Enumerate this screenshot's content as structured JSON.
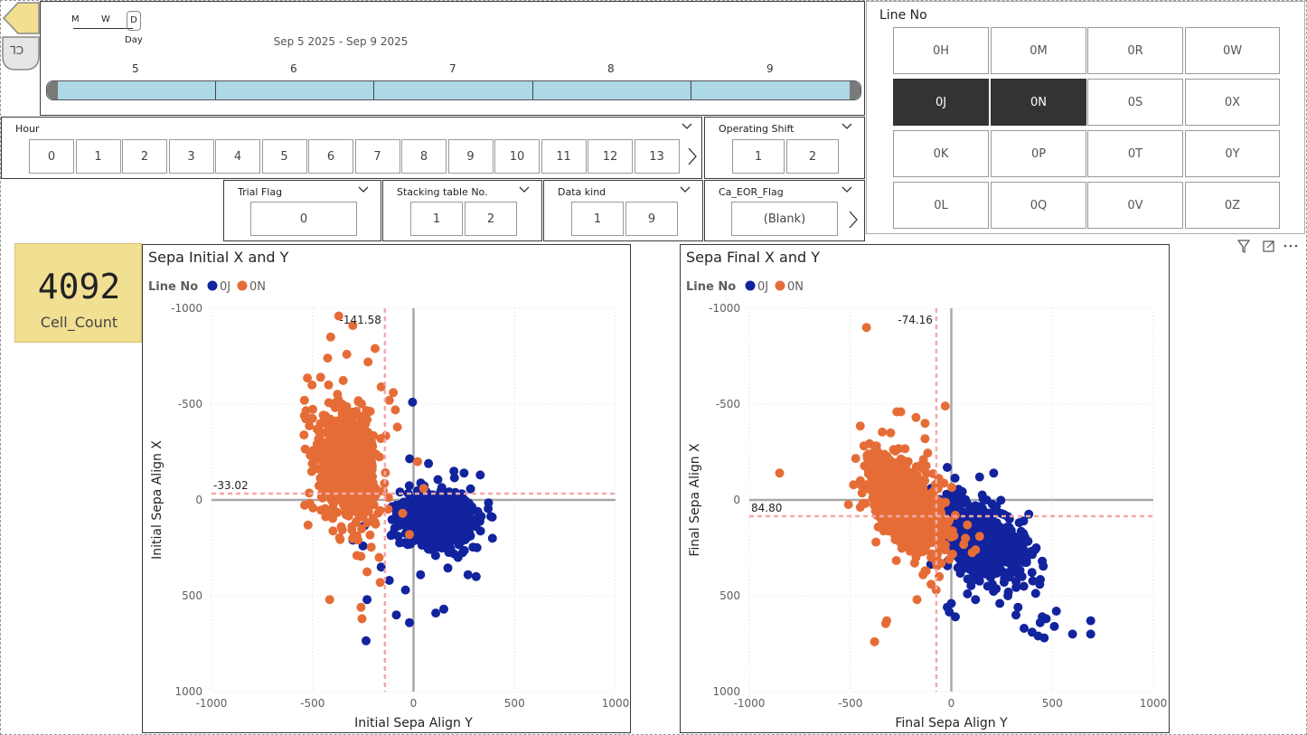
{
  "nav": {
    "clear_label": "CL"
  },
  "date_slicer": {
    "granularity": {
      "m": "M",
      "w": "W",
      "d": "D",
      "selected": "Day"
    },
    "range": "Sep 5 2025 - Sep 9 2025",
    "days": [
      "5",
      "6",
      "7",
      "8",
      "9"
    ]
  },
  "line_slicer": {
    "title": "Line No",
    "options": [
      "0H",
      "0M",
      "0R",
      "0W",
      "0J",
      "0N",
      "0S",
      "0X",
      "0K",
      "0P",
      "0T",
      "0Y",
      "0L",
      "0Q",
      "0V",
      "0Z"
    ],
    "selected": [
      "0J",
      "0N"
    ]
  },
  "hour_slicer": {
    "title": "Hour",
    "options": [
      "0",
      "1",
      "2",
      "3",
      "4",
      "5",
      "6",
      "7",
      "8",
      "9",
      "10",
      "11",
      "12",
      "13"
    ]
  },
  "shift_slicer": {
    "title": "Operating Shift",
    "options": [
      "1",
      "2"
    ]
  },
  "trial_slicer": {
    "title": "Trial Flag",
    "options": [
      "0"
    ]
  },
  "stack_slicer": {
    "title": "Stacking table No.",
    "options": [
      "1",
      "2"
    ]
  },
  "kind_slicer": {
    "title": "Data kind",
    "options": [
      "1",
      "9"
    ]
  },
  "eor_slicer": {
    "title": "Ca_EOR_Flag",
    "options": [
      "(Blank)"
    ]
  },
  "card": {
    "value": "4092",
    "label": "Cell_Count"
  },
  "colors": {
    "series_0J": "#12239e",
    "series_0N": "#e66c37",
    "selected_btn": "#333333",
    "card_bg": "#f1df92",
    "ref_line": "#f4a8a8"
  },
  "chart_data": [
    {
      "type": "scatter",
      "title": "Sepa Initial X and Y",
      "legend_title": "Line No",
      "legend": [
        "0J",
        "0N"
      ],
      "xlabel": "Initial Sepa Align Y",
      "ylabel": "Initial Sepa Align X",
      "xlim": [
        -1000,
        1000
      ],
      "ylim": [
        -1000,
        1000
      ],
      "y_inverted": true,
      "xticks": [
        "-1000",
        "-500",
        "0",
        "500",
        "1000"
      ],
      "yticks": [
        "-1000",
        "-500",
        "0",
        "500",
        "1000"
      ],
      "ref_x": -141.58,
      "ref_y": -33.02,
      "ref_x_label": "-141.58",
      "ref_y_label": "-33.02",
      "series": [
        {
          "name": "0J",
          "cx": 120,
          "cy": 100,
          "sx": 90,
          "sy": 75,
          "n": 650,
          "outliers": [
            [
              -5,
              -510
            ],
            [
              35,
              390
            ],
            [
              170,
              355
            ],
            [
              -85,
              600
            ],
            [
              -20,
              640
            ],
            [
              -235,
              735
            ],
            [
              110,
              590
            ],
            [
              150,
              570
            ],
            [
              -230,
              520
            ],
            [
              310,
              400
            ],
            [
              200,
              -150
            ],
            [
              250,
              -140
            ],
            [
              330,
              -130
            ],
            [
              -300,
              210
            ],
            [
              -250,
              240
            ],
            [
              270,
              390
            ],
            [
              -40,
              470
            ],
            [
              -160,
              350
            ],
            [
              220,
              300
            ],
            [
              -120,
              420
            ]
          ]
        },
        {
          "name": "0N",
          "cx": -330,
          "cy": -170,
          "sx": 75,
          "sy": 145,
          "n": 800,
          "outliers": [
            [
              -370,
              -960
            ],
            [
              -410,
              -850
            ],
            [
              -300,
              -910
            ],
            [
              -190,
              -790
            ],
            [
              -330,
              -760
            ],
            [
              -425,
              -740
            ],
            [
              -225,
              -720
            ],
            [
              -160,
              -590
            ],
            [
              -120,
              -520
            ],
            [
              -500,
              -425
            ],
            [
              -540,
              -440
            ],
            [
              -540,
              -520
            ],
            [
              -420,
              -600
            ],
            [
              -460,
              -640
            ],
            [
              -280,
              290
            ],
            [
              -230,
              375
            ],
            [
              -165,
              430
            ],
            [
              -260,
              560
            ],
            [
              -255,
              620
            ],
            [
              -415,
              520
            ],
            [
              -170,
              300
            ],
            [
              -20,
              180
            ],
            [
              50,
              -60
            ],
            [
              20,
              -200
            ],
            [
              -100,
              -560
            ],
            [
              -230,
              -420
            ],
            [
              -90,
              -470
            ],
            [
              -80,
              -380
            ]
          ]
        }
      ]
    },
    {
      "type": "scatter",
      "title": "Sepa Final X and Y",
      "legend_title": "Line No",
      "legend": [
        "0J",
        "0N"
      ],
      "xlabel": "Final Sepa Align Y",
      "ylabel": "Final Sepa Align X",
      "xlim": [
        -1000,
        1000
      ],
      "ylim": [
        -1000,
        1000
      ],
      "y_inverted": true,
      "xticks": [
        "-1000",
        "-500",
        "0",
        "500",
        "1000"
      ],
      "yticks": [
        "-1000",
        "-500",
        "0",
        "500",
        "1000"
      ],
      "ref_x": -74.16,
      "ref_y": 84.8,
      "ref_x_label": "-74.16",
      "ref_y_label": "84.80",
      "series": [
        {
          "name": "0J",
          "cx": 150,
          "cy": 210,
          "sx": 95,
          "sy": 105,
          "n": 650,
          "outliers": [
            [
              690,
              630
            ],
            [
              690,
              700
            ],
            [
              600,
              700
            ],
            [
              520,
              580
            ],
            [
              470,
              620
            ],
            [
              510,
              660
            ],
            [
              450,
              610
            ],
            [
              440,
              640
            ],
            [
              430,
              710
            ],
            [
              460,
              720
            ],
            [
              400,
              690
            ],
            [
              360,
              670
            ],
            [
              320,
              600
            ],
            [
              240,
              540
            ],
            [
              330,
              560
            ],
            [
              280,
              500
            ],
            [
              180,
              450
            ],
            [
              80,
              490
            ],
            [
              120,
              520
            ],
            [
              0,
              540
            ],
            [
              -20,
              560
            ],
            [
              20,
              610
            ],
            [
              -10,
              585
            ],
            [
              450,
              320
            ],
            [
              350,
              400
            ],
            [
              420,
              250
            ],
            [
              210,
              -140
            ],
            [
              140,
              -120
            ],
            [
              -20,
              -170
            ],
            [
              -60,
              -80
            ],
            [
              100,
              140
            ],
            [
              80,
              260
            ]
          ]
        },
        {
          "name": "0N",
          "cx": -220,
          "cy": 20,
          "sx": 85,
          "sy": 120,
          "n": 800,
          "outliers": [
            [
              -850,
              -140
            ],
            [
              -420,
              -900
            ],
            [
              -30,
              -490
            ],
            [
              -250,
              -460
            ],
            [
              -270,
              -460
            ],
            [
              -130,
              -400
            ],
            [
              -175,
              -430
            ],
            [
              -130,
              -320
            ],
            [
              -380,
              -280
            ],
            [
              -410,
              -240
            ],
            [
              -380,
              740
            ],
            [
              -325,
              645
            ],
            [
              -320,
              630
            ],
            [
              -140,
              390
            ],
            [
              -130,
              370
            ],
            [
              -60,
              400
            ],
            [
              -170,
              520
            ],
            [
              -75,
              470
            ],
            [
              -100,
              440
            ],
            [
              -50,
              330
            ],
            [
              70,
              200
            ],
            [
              120,
              260
            ],
            [
              140,
              190
            ],
            [
              -10,
              310
            ],
            [
              -300,
              -350
            ],
            [
              -450,
              -100
            ]
          ]
        }
      ]
    }
  ]
}
